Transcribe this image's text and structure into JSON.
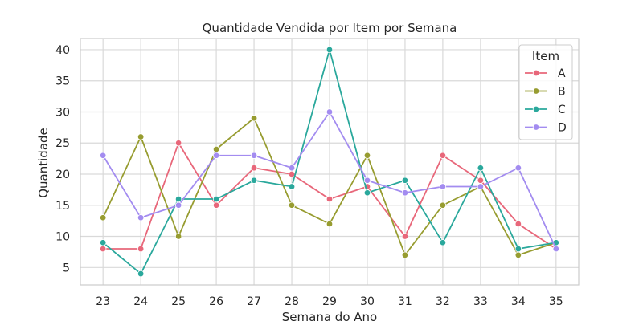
{
  "chart_data": {
    "type": "line",
    "title": "Quantidade Vendida por Item por Semana",
    "xlabel": "Semana do Ano",
    "ylabel": "Quantidade",
    "x": [
      23,
      24,
      25,
      26,
      27,
      28,
      29,
      30,
      31,
      32,
      33,
      34,
      35
    ],
    "xlim": [
      22.4,
      35.6
    ],
    "ylim": [
      2.2,
      41.8
    ],
    "yticks": [
      5,
      10,
      15,
      20,
      25,
      30,
      35,
      40
    ],
    "grid": true,
    "legend": {
      "title": "Item",
      "position": "top-right"
    },
    "series": [
      {
        "name": "A",
        "color": "#e8677a",
        "values": [
          8,
          8,
          25,
          15,
          21,
          20,
          16,
          18,
          10,
          23,
          19,
          12,
          8
        ]
      },
      {
        "name": "B",
        "color": "#979c30",
        "values": [
          13,
          26,
          10,
          24,
          29,
          15,
          12,
          23,
          7,
          15,
          18,
          7,
          9
        ]
      },
      {
        "name": "C",
        "color": "#2aa89c",
        "values": [
          9,
          4,
          16,
          16,
          19,
          18,
          40,
          17,
          19,
          9,
          21,
          8,
          9
        ]
      },
      {
        "name": "D",
        "color": "#a38cf0",
        "values": [
          23,
          13,
          15,
          23,
          23,
          21,
          30,
          19,
          17,
          18,
          18,
          21,
          8
        ]
      }
    ]
  }
}
